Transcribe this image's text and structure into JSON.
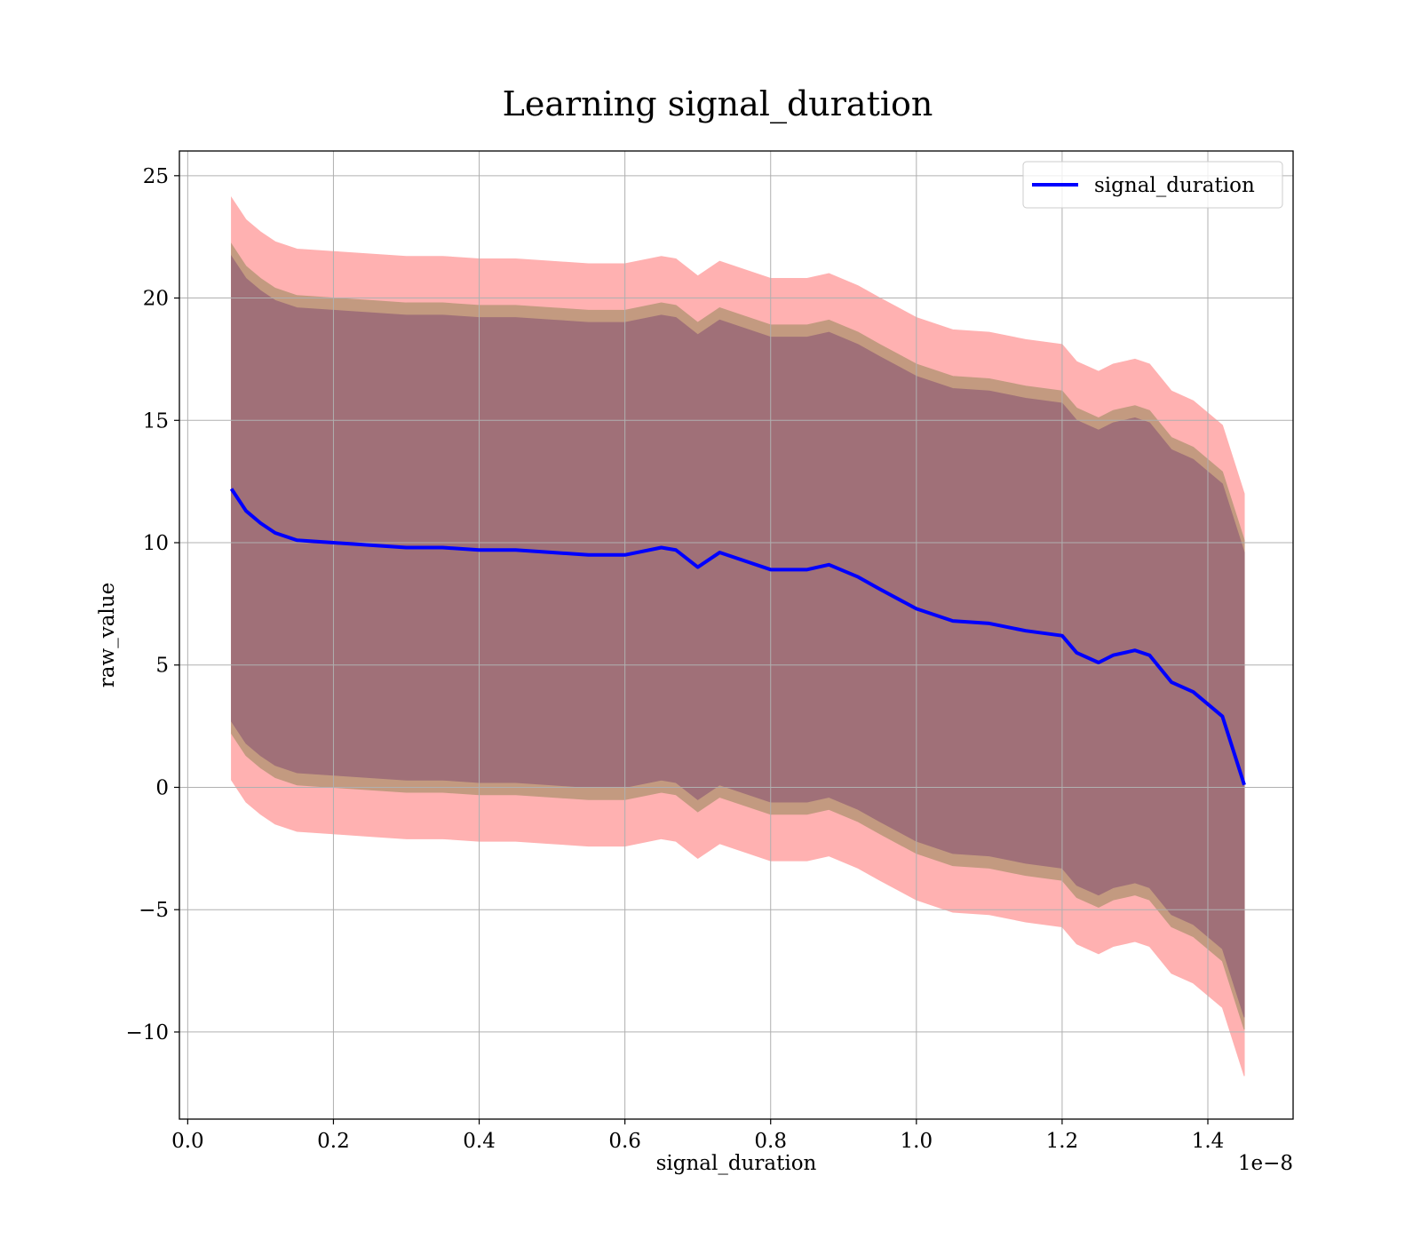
{
  "chart_data": {
    "type": "line",
    "title": "Learning signal_duration",
    "xlabel": "signal_duration",
    "ylabel": "raw_value",
    "x_offset_label": "1e−8",
    "x": [
      0.06,
      0.08,
      0.1,
      0.12,
      0.15,
      0.2,
      0.25,
      0.3,
      0.35,
      0.4,
      0.45,
      0.5,
      0.55,
      0.6,
      0.65,
      0.67,
      0.7,
      0.73,
      0.8,
      0.85,
      0.88,
      0.92,
      0.95,
      1.0,
      1.05,
      1.1,
      1.15,
      1.2,
      1.22,
      1.25,
      1.27,
      1.3,
      1.32,
      1.35,
      1.38,
      1.42,
      1.45
    ],
    "series": [
      {
        "name": "signal_duration",
        "color": "#0000ff",
        "values": [
          12.2,
          11.3,
          10.8,
          10.4,
          10.1,
          10.0,
          9.9,
          9.8,
          9.8,
          9.7,
          9.7,
          9.6,
          9.5,
          9.5,
          9.8,
          9.7,
          9.0,
          9.6,
          8.9,
          8.9,
          9.1,
          8.6,
          8.1,
          7.3,
          6.8,
          6.7,
          6.4,
          6.2,
          5.5,
          5.1,
          5.4,
          5.6,
          5.4,
          4.3,
          3.9,
          2.9,
          0.1
        ]
      }
    ],
    "bands": [
      {
        "color": "#ffb1b1",
        "upper": [
          24.1,
          23.2,
          22.7,
          22.3,
          22.0,
          21.9,
          21.8,
          21.7,
          21.7,
          21.6,
          21.6,
          21.5,
          21.4,
          21.4,
          21.7,
          21.6,
          20.9,
          21.5,
          20.8,
          20.8,
          21.0,
          20.5,
          20.0,
          19.2,
          18.7,
          18.6,
          18.3,
          18.1,
          17.4,
          17.0,
          17.3,
          17.5,
          17.3,
          16.2,
          15.8,
          14.8,
          12.0
        ],
        "lower": [
          0.3,
          -0.6,
          -1.1,
          -1.5,
          -1.8,
          -1.9,
          -2.0,
          -2.1,
          -2.1,
          -2.2,
          -2.2,
          -2.3,
          -2.4,
          -2.4,
          -2.1,
          -2.2,
          -2.9,
          -2.3,
          -3.0,
          -3.0,
          -2.8,
          -3.3,
          -3.8,
          -4.6,
          -5.1,
          -5.2,
          -5.5,
          -5.7,
          -6.4,
          -6.8,
          -6.5,
          -6.3,
          -6.5,
          -7.6,
          -8.0,
          -9.0,
          -11.8
        ]
      },
      {
        "color": "#c39a80",
        "upper": [
          22.2,
          21.3,
          20.8,
          20.4,
          20.1,
          20.0,
          19.9,
          19.8,
          19.8,
          19.7,
          19.7,
          19.6,
          19.5,
          19.5,
          19.8,
          19.7,
          19.0,
          19.6,
          18.9,
          18.9,
          19.1,
          18.6,
          18.1,
          17.3,
          16.8,
          16.7,
          16.4,
          16.2,
          15.5,
          15.1,
          15.4,
          15.6,
          15.4,
          14.3,
          13.9,
          12.9,
          10.1
        ],
        "lower": [
          2.2,
          1.3,
          0.8,
          0.4,
          0.1,
          0.0,
          -0.1,
          -0.2,
          -0.2,
          -0.3,
          -0.3,
          -0.4,
          -0.5,
          -0.5,
          -0.2,
          -0.3,
          -1.0,
          -0.4,
          -1.1,
          -1.1,
          -0.9,
          -1.4,
          -1.9,
          -2.7,
          -3.2,
          -3.3,
          -3.6,
          -3.8,
          -4.5,
          -4.9,
          -4.6,
          -4.4,
          -4.6,
          -5.7,
          -6.1,
          -7.1,
          -9.9
        ]
      },
      {
        "color": "#a07078",
        "upper": [
          21.7,
          20.8,
          20.3,
          19.9,
          19.6,
          19.5,
          19.4,
          19.3,
          19.3,
          19.2,
          19.2,
          19.1,
          19.0,
          19.0,
          19.3,
          19.2,
          18.5,
          19.1,
          18.4,
          18.4,
          18.6,
          18.1,
          17.6,
          16.8,
          16.3,
          16.2,
          15.9,
          15.7,
          15.0,
          14.6,
          14.9,
          15.1,
          14.9,
          13.8,
          13.4,
          12.4,
          9.6
        ],
        "lower": [
          2.7,
          1.8,
          1.3,
          0.9,
          0.6,
          0.5,
          0.4,
          0.3,
          0.3,
          0.2,
          0.2,
          0.1,
          0.0,
          0.0,
          0.3,
          0.2,
          -0.5,
          0.1,
          -0.6,
          -0.6,
          -0.4,
          -0.9,
          -1.4,
          -2.2,
          -2.7,
          -2.8,
          -3.1,
          -3.3,
          -4.0,
          -4.4,
          -4.1,
          -3.9,
          -4.1,
          -5.2,
          -5.6,
          -6.6,
          -9.4
        ]
      }
    ],
    "xlim": [
      -0.0114,
      1.517
    ],
    "ylim": [
      -13.56,
      26.01
    ],
    "xticks": [
      {
        "value": 0,
        "label": "0.0"
      },
      0.2,
      0.4,
      0.6,
      0.8,
      {
        "value": 1,
        "label": "1.0"
      },
      1.2,
      1.4
    ],
    "yticks": [
      {
        "value": -10,
        "label": "−10"
      },
      {
        "value": -5,
        "label": "−5"
      },
      0,
      5,
      10,
      15,
      20,
      25
    ],
    "grid": true,
    "legend": "upper right"
  }
}
